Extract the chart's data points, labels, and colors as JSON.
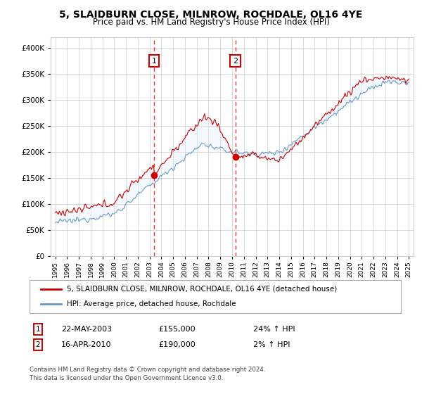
{
  "title": "5, SLAIDBURN CLOSE, MILNROW, ROCHDALE, OL16 4YE",
  "subtitle": "Price paid vs. HM Land Registry's House Price Index (HPI)",
  "legend_line1": "5, SLAIDBURN CLOSE, MILNROW, ROCHDALE, OL16 4YE (detached house)",
  "legend_line2": "HPI: Average price, detached house, Rochdale",
  "annotation1_date": "22-MAY-2003",
  "annotation1_price": "£155,000",
  "annotation1_hpi": "24% ↑ HPI",
  "annotation2_date": "16-APR-2010",
  "annotation2_price": "£190,000",
  "annotation2_hpi": "2% ↑ HPI",
  "sale1_year": 2003.38,
  "sale1_value": 155000,
  "sale2_year": 2010.28,
  "sale2_value": 190000,
  "red_color": "#cc0000",
  "blue_color": "#6699cc",
  "fill_color": "#ddeeff",
  "vline_color": "#ee3333",
  "box_edge_color": "#cc0000",
  "background_color": "#ffffff",
  "grid_color": "#cccccc",
  "footnote1": "Contains HM Land Registry data © Crown copyright and database right 2024.",
  "footnote2": "This data is licensed under the Open Government Licence v3.0.",
  "ylim": [
    0,
    420000
  ],
  "yticks": [
    0,
    50000,
    100000,
    150000,
    200000,
    250000,
    300000,
    350000,
    400000
  ]
}
